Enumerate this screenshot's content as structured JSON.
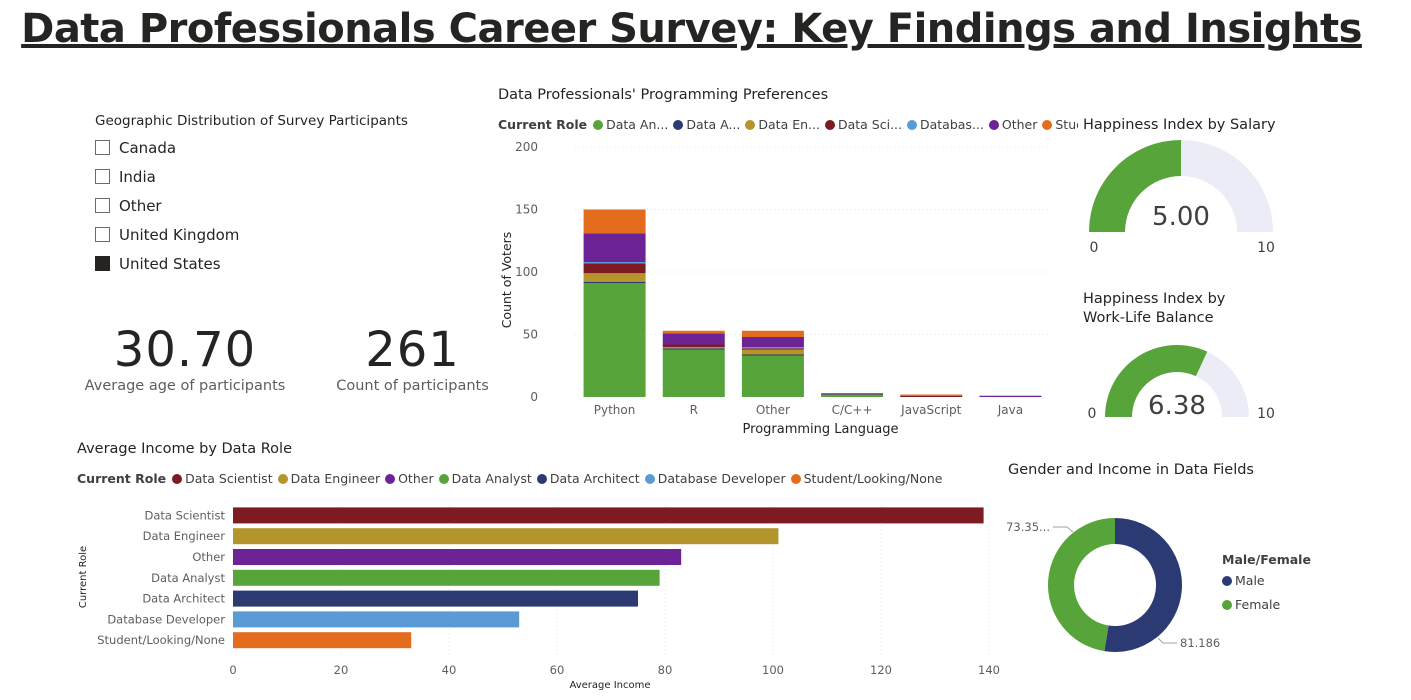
{
  "title": "Data Professionals Career Survey: Key Findings and Insights",
  "slicer": {
    "title": "Geographic Distribution of Survey Participants",
    "items": [
      {
        "label": "Canada",
        "checked": false
      },
      {
        "label": "India",
        "checked": false
      },
      {
        "label": "Other",
        "checked": false
      },
      {
        "label": "United Kingdom",
        "checked": false
      },
      {
        "label": "United States",
        "checked": true
      }
    ]
  },
  "kpis": {
    "avg_age": {
      "value": "30.70",
      "label": "Average age of participants"
    },
    "count": {
      "value": "261",
      "label": "Count of participants"
    }
  },
  "colors": {
    "data_analyst": "#57a43a",
    "data_architect": "#2b3a72",
    "data_engineer": "#b3952b",
    "data_scientist": "#7d1a22",
    "database_developer": "#5b9bd5",
    "other": "#6b2395",
    "student": "#e46c1e",
    "gauge_track": "#ececf7"
  },
  "programming": {
    "legend_title": "Current Role",
    "legend_items": [
      {
        "label": "Data An...",
        "color": "#57a43a"
      },
      {
        "label": "Data A...",
        "color": "#2b3a72"
      },
      {
        "label": "Data En...",
        "color": "#b3952b"
      },
      {
        "label": "Data Sci...",
        "color": "#7d1a22"
      },
      {
        "label": "Databas...",
        "color": "#5b9bd5"
      },
      {
        "label": "Other",
        "color": "#6b2395"
      },
      {
        "label": "Student...",
        "color": "#e46c1e"
      }
    ]
  },
  "happiness_salary": {
    "title": "Happiness Index by Salary",
    "value_label": "5.00",
    "min_label": "0",
    "max_label": "10"
  },
  "happiness_wlb": {
    "title_line1": "Happiness Index by",
    "title_line2": "Work-Life Balance",
    "value_label": "6.38",
    "min_label": "0",
    "max_label": "10"
  },
  "income": {
    "legend_title": "Current Role",
    "legend_items": [
      {
        "label": "Data Scientist",
        "color": "#7d1a22"
      },
      {
        "label": "Data Engineer",
        "color": "#b3952b"
      },
      {
        "label": "Other",
        "color": "#6b2395"
      },
      {
        "label": "Data Analyst",
        "color": "#57a43a"
      },
      {
        "label": "Data Architect",
        "color": "#2b3a72"
      },
      {
        "label": "Database Developer",
        "color": "#5b9bd5"
      },
      {
        "label": "Student/Looking/None",
        "color": "#e46c1e"
      }
    ]
  },
  "gender": {
    "title": "Gender and Income in Data Fields",
    "legend_title": "Male/Female",
    "items": [
      {
        "label": "Male",
        "color": "#2b3a72",
        "value_label": "81.186..."
      },
      {
        "label": "Female",
        "color": "#57a43a",
        "value_label": "73.35..."
      }
    ]
  },
  "chart_data": [
    {
      "type": "bar",
      "stacked": true,
      "title": "Data Professionals' Programming Preferences",
      "xlabel": "Programming Language",
      "ylabel": "Count of Voters",
      "ylim": [
        0,
        200
      ],
      "yticks": [
        0,
        50,
        100,
        150,
        200
      ],
      "categories": [
        "Python",
        "R",
        "Other",
        "C/C++",
        "JavaScript",
        "Java"
      ],
      "series": [
        {
          "name": "Data Analyst",
          "values": [
            91,
            38,
            33,
            2,
            0,
            0
          ]
        },
        {
          "name": "Data Architect",
          "values": [
            1,
            1,
            1,
            0,
            0,
            0
          ]
        },
        {
          "name": "Data Engineer",
          "values": [
            7,
            1,
            4,
            0,
            0,
            0
          ]
        },
        {
          "name": "Data Scientist",
          "values": [
            8,
            2,
            1,
            0,
            1,
            0
          ]
        },
        {
          "name": "Database Developer",
          "values": [
            1,
            0,
            1,
            0,
            0,
            0
          ]
        },
        {
          "name": "Other",
          "values": [
            23,
            9,
            8,
            1,
            0,
            1
          ]
        },
        {
          "name": "Student/Looking/None",
          "values": [
            19,
            2,
            5,
            0,
            1,
            0
          ]
        }
      ]
    },
    {
      "type": "bar",
      "orientation": "horizontal",
      "title": "Average Income by Data Role",
      "xlabel": "Average Income",
      "ylabel": "Current Role",
      "xlim": [
        0,
        140
      ],
      "xticks": [
        0,
        20,
        40,
        60,
        80,
        100,
        120,
        140
      ],
      "categories": [
        "Data Scientist",
        "Data Engineer",
        "Other",
        "Data Analyst",
        "Data Architect",
        "Database Developer",
        "Student/Looking/None"
      ],
      "values": [
        139,
        101,
        83,
        79,
        75,
        53,
        33
      ]
    },
    {
      "type": "pie",
      "donut": true,
      "title": "Gender and Income in Data Fields",
      "categories": [
        "Male",
        "Female"
      ],
      "values": [
        81.186,
        73.35
      ]
    },
    {
      "type": "gauge",
      "title": "Happiness Index by Salary",
      "value": 5.0,
      "min": 0,
      "max": 10
    },
    {
      "type": "gauge",
      "title": "Happiness Index by Work-Life Balance",
      "value": 6.38,
      "min": 0,
      "max": 10
    }
  ]
}
